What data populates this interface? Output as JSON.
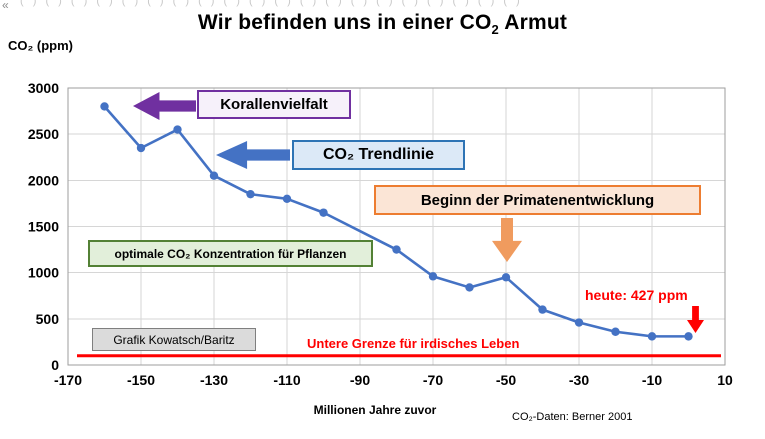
{
  "page": {
    "left_glyph": "«",
    "top_artifacts": "( )  ( )  ( )  ( )  ( )  ( )  ( )  ( )  ( )  ( )  ( )  ( )  ( )  ( )  ( )  ( )  ( )  ( )  ( )  ( )"
  },
  "title": {
    "pre": "Wir befinden uns in einer CO",
    "sub": "2",
    "post": " Armut"
  },
  "annotations": {
    "korallen": "Korallenvielfalt",
    "trendlinie": "CO₂ Trendlinie",
    "primaten": "Beginn der Primatenentwicklung",
    "pflanzen": "optimale CO₂ Konzentration für Pflanzen",
    "grafik": "Grafik Kowatsch/Baritz",
    "heute": "heute: 427 ppm",
    "untere_grenze": "Untere Grenze für irdisches Leben"
  },
  "colors": {
    "purple": "#7030A0",
    "purple_bg": "#F6F1FA",
    "blue": "#4472C4",
    "blue_border": "#2E74B5",
    "blue_bg": "#DCE9F7",
    "orange": "#ED7D31",
    "orange_bg": "#FBE5D6",
    "orange_arrow": "#F09B5E",
    "green": "#538135",
    "green_bg": "#E2EFDA",
    "gray_border": "#7F7F7F",
    "gray_bg": "#DBDBDB",
    "red": "#FF0000"
  },
  "chart_data": {
    "type": "line",
    "title": "Wir befinden uns in einer CO₂ Armut",
    "series_name": "CO₂ Trendlinie",
    "series_color": "#4472C4",
    "x": [
      -160,
      -150,
      -140,
      -130,
      -120,
      -110,
      -100,
      -80,
      -70,
      -60,
      -50,
      -40,
      -30,
      -20,
      -10,
      0
    ],
    "values": [
      2800,
      2350,
      2550,
      2050,
      1850,
      1800,
      1650,
      1250,
      960,
      840,
      950,
      600,
      460,
      360,
      310,
      310
    ],
    "xlim": [
      -170,
      10
    ],
    "ylim": [
      0,
      3000
    ],
    "x_ticks": [
      -170,
      -150,
      -130,
      -110,
      -90,
      -70,
      -50,
      -30,
      -10,
      10
    ],
    "y_ticks": [
      0,
      500,
      1000,
      1500,
      2000,
      2500,
      3000
    ],
    "xlabel": "Millionen Jahre zuvor",
    "ylabel": "CO₂ (ppm)",
    "grid": true,
    "gridline_color": "#D6D6D6",
    "lower_limit_line_ppm": 100,
    "lower_limit_label": "Untere Grenze für irdisches Leben",
    "lower_limit_color": "#FF0000",
    "today_ppm": 427,
    "source": "CO₂-Daten: Berner 2001"
  }
}
